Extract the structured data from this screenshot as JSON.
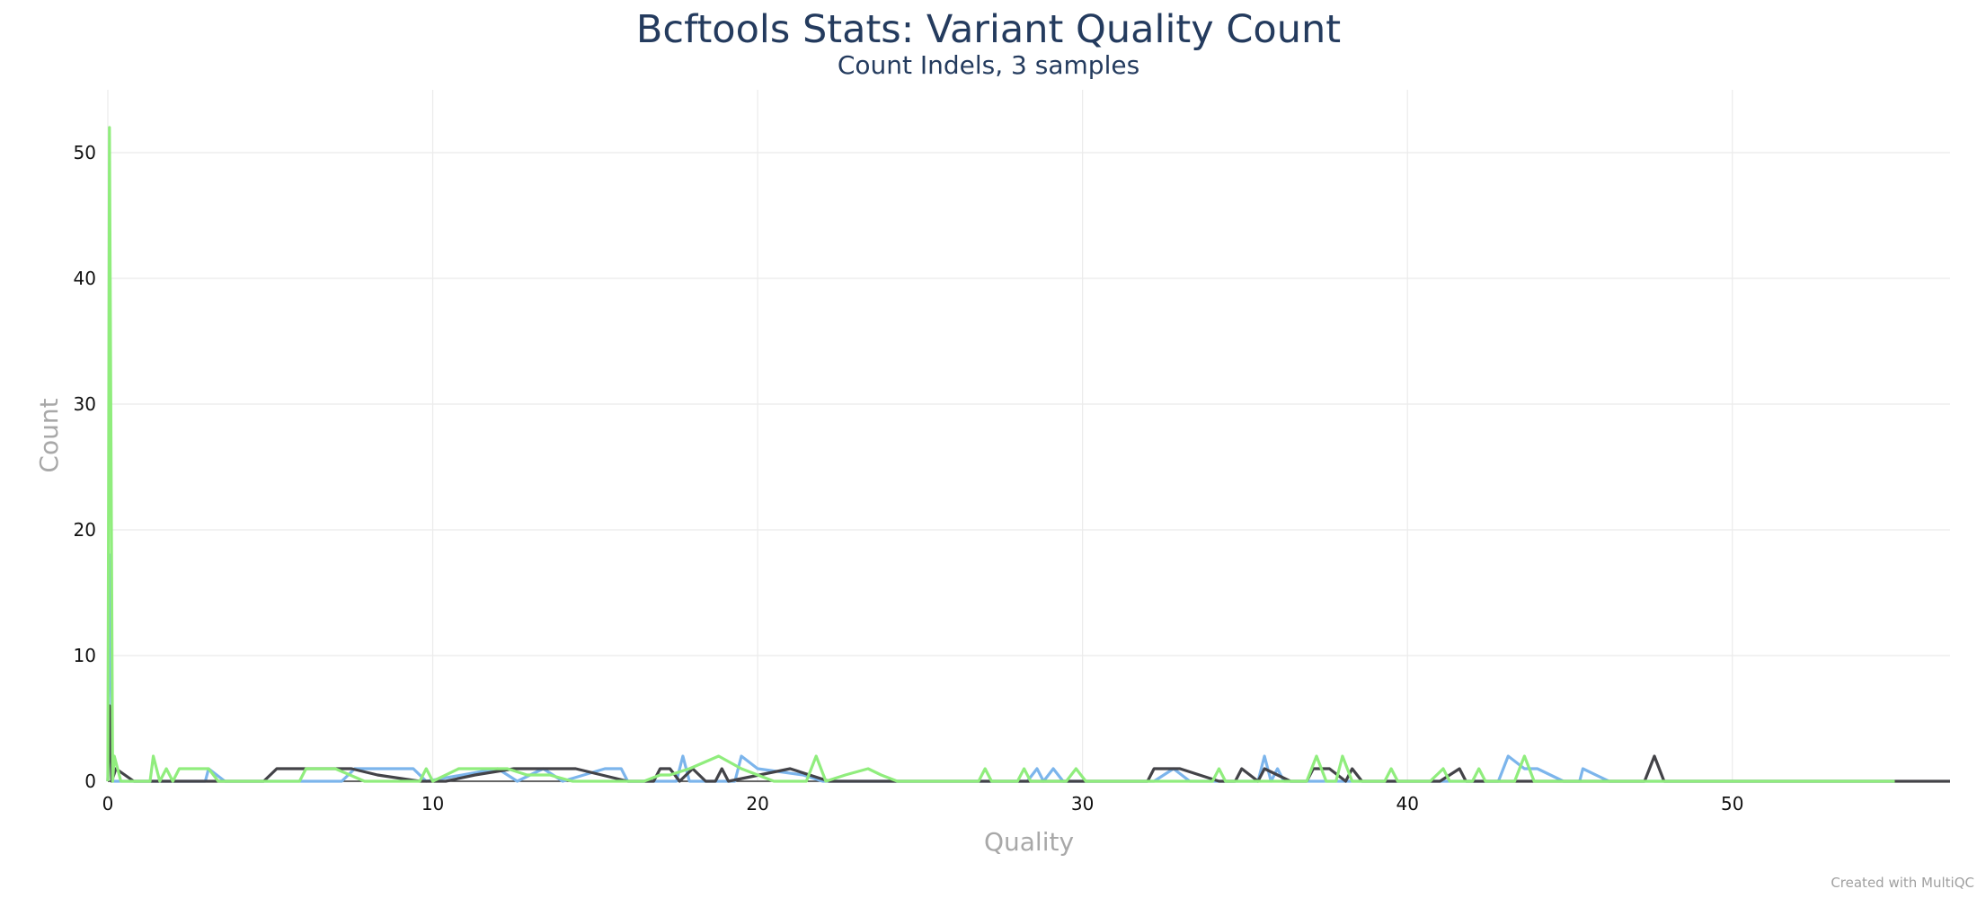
{
  "chart_data": {
    "type": "line",
    "title": "Bcftools Stats: Variant Quality Count",
    "subtitle": "Count Indels, 3 samples",
    "xlabel": "Quality",
    "ylabel": "Count",
    "xlim": [
      0,
      56.7
    ],
    "ylim": [
      0,
      55
    ],
    "xticks": [
      0,
      10,
      20,
      30,
      40,
      50
    ],
    "yticks": [
      0,
      10,
      20,
      30,
      40,
      50
    ],
    "grid": true,
    "legend": "none",
    "series": [
      {
        "color": "#7cb5ec",
        "points": [
          [
            0,
            0
          ],
          [
            0.05,
            18
          ],
          [
            0.15,
            0
          ],
          [
            3,
            0
          ],
          [
            3.1,
            1
          ],
          [
            3.6,
            0
          ],
          [
            7.2,
            0
          ],
          [
            7.6,
            1
          ],
          [
            9.4,
            1
          ],
          [
            9.8,
            0
          ],
          [
            12,
            1
          ],
          [
            12.6,
            0
          ],
          [
            13.4,
            1
          ],
          [
            14,
            0
          ],
          [
            15.3,
            1
          ],
          [
            15.8,
            1
          ],
          [
            16,
            0
          ],
          [
            17.5,
            0
          ],
          [
            17.7,
            2
          ],
          [
            17.9,
            0
          ],
          [
            19.3,
            0
          ],
          [
            19.5,
            2
          ],
          [
            20,
            1
          ],
          [
            21.4,
            0.5
          ],
          [
            22,
            0
          ],
          [
            28.3,
            0
          ],
          [
            28.6,
            1
          ],
          [
            28.8,
            0
          ],
          [
            29.1,
            1
          ],
          [
            29.4,
            0
          ],
          [
            32.2,
            0
          ],
          [
            32.8,
            1
          ],
          [
            33.3,
            0
          ],
          [
            35.4,
            0
          ],
          [
            35.6,
            2
          ],
          [
            35.8,
            0
          ],
          [
            36,
            1
          ],
          [
            36.2,
            0
          ],
          [
            42.8,
            0
          ],
          [
            43.1,
            2
          ],
          [
            43.6,
            1
          ],
          [
            44,
            1
          ],
          [
            44.8,
            0
          ],
          [
            45.3,
            0
          ],
          [
            45.4,
            1
          ],
          [
            46.2,
            0
          ],
          [
            55,
            0
          ]
        ]
      },
      {
        "color": "#434348",
        "points": [
          [
            0,
            0
          ],
          [
            0.05,
            6
          ],
          [
            0.12,
            0
          ],
          [
            0.25,
            1
          ],
          [
            0.8,
            0
          ],
          [
            3,
            0
          ],
          [
            4.8,
            0
          ],
          [
            5.2,
            1
          ],
          [
            6.5,
            1
          ],
          [
            7.5,
            1
          ],
          [
            8.3,
            0.5
          ],
          [
            9.6,
            0
          ],
          [
            10.4,
            0
          ],
          [
            11.3,
            0.5
          ],
          [
            12.5,
            1
          ],
          [
            14.4,
            1
          ],
          [
            16,
            0
          ],
          [
            16.8,
            0
          ],
          [
            17,
            1
          ],
          [
            17.3,
            1
          ],
          [
            17.6,
            0
          ],
          [
            18,
            1
          ],
          [
            18.4,
            0
          ],
          [
            18.7,
            0
          ],
          [
            18.9,
            1
          ],
          [
            19.1,
            0
          ],
          [
            21,
            1
          ],
          [
            22.2,
            0
          ],
          [
            32,
            0
          ],
          [
            32.2,
            1
          ],
          [
            33,
            1
          ],
          [
            34.2,
            0
          ],
          [
            34.7,
            0
          ],
          [
            34.9,
            1
          ],
          [
            35.4,
            0
          ],
          [
            35.6,
            1
          ],
          [
            36.4,
            0
          ],
          [
            36.9,
            0
          ],
          [
            37.1,
            1
          ],
          [
            37.6,
            1
          ],
          [
            38.1,
            0
          ],
          [
            38.3,
            1
          ],
          [
            38.6,
            0
          ],
          [
            41,
            0
          ],
          [
            41.6,
            1
          ],
          [
            41.8,
            0
          ],
          [
            47.3,
            0
          ],
          [
            47.6,
            2
          ],
          [
            47.9,
            0
          ],
          [
            56.7,
            0
          ]
        ]
      },
      {
        "color": "#90ed7d",
        "points": [
          [
            0,
            0
          ],
          [
            0.05,
            52
          ],
          [
            0.15,
            0
          ],
          [
            0.2,
            2
          ],
          [
            0.4,
            0
          ],
          [
            1.3,
            0
          ],
          [
            1.4,
            2
          ],
          [
            1.6,
            0
          ],
          [
            1.8,
            1
          ],
          [
            2,
            0
          ],
          [
            2.2,
            1
          ],
          [
            3.1,
            1
          ],
          [
            3.4,
            0
          ],
          [
            5.9,
            0
          ],
          [
            6.1,
            1
          ],
          [
            7,
            1
          ],
          [
            7.9,
            0
          ],
          [
            9.6,
            0
          ],
          [
            9.8,
            1
          ],
          [
            10,
            0
          ],
          [
            10.8,
            1
          ],
          [
            12.3,
            1
          ],
          [
            12.9,
            0.5
          ],
          [
            13.6,
            0.5
          ],
          [
            14.3,
            0
          ],
          [
            16.5,
            0
          ],
          [
            17,
            0.5
          ],
          [
            17.3,
            0.5
          ],
          [
            17.9,
            1
          ],
          [
            18.8,
            2
          ],
          [
            19.5,
            1
          ],
          [
            20.5,
            0
          ],
          [
            21.5,
            0
          ],
          [
            21.8,
            2
          ],
          [
            22.1,
            0
          ],
          [
            22.7,
            0.5
          ],
          [
            23.4,
            1
          ],
          [
            23.8,
            0.5
          ],
          [
            24.3,
            0
          ],
          [
            26.8,
            0
          ],
          [
            27,
            1
          ],
          [
            27.2,
            0
          ],
          [
            28,
            0
          ],
          [
            28.2,
            1
          ],
          [
            28.4,
            0
          ],
          [
            29.5,
            0
          ],
          [
            29.8,
            1
          ],
          [
            30.1,
            0
          ],
          [
            34,
            0
          ],
          [
            34.2,
            1
          ],
          [
            34.4,
            0
          ],
          [
            36.9,
            0
          ],
          [
            37.2,
            2
          ],
          [
            37.5,
            0
          ],
          [
            37.8,
            0
          ],
          [
            38,
            2
          ],
          [
            38.3,
            0
          ],
          [
            39.3,
            0
          ],
          [
            39.5,
            1
          ],
          [
            39.7,
            0
          ],
          [
            40.7,
            0
          ],
          [
            41.1,
            1
          ],
          [
            41.3,
            0
          ],
          [
            42,
            0
          ],
          [
            42.2,
            1
          ],
          [
            42.4,
            0
          ],
          [
            43.3,
            0
          ],
          [
            43.6,
            2
          ],
          [
            43.9,
            0
          ],
          [
            55,
            0
          ]
        ]
      }
    ]
  },
  "footer": {
    "credit": "Created with MultiQC"
  }
}
